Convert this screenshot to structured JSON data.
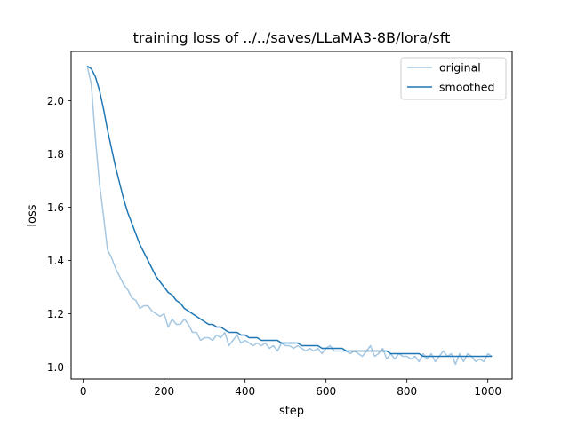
{
  "chart_data": {
    "type": "line",
    "title": "training loss of ../../saves/LLaMA3-8B/lora/sft",
    "xlabel": "step",
    "ylabel": "loss",
    "xlim": [
      -30,
      1060
    ],
    "ylim": [
      0.955,
      2.185
    ],
    "xticks": [
      0,
      200,
      400,
      600,
      800,
      1000
    ],
    "yticks": [
      1.0,
      1.2,
      1.4,
      1.6,
      1.8,
      2.0
    ],
    "xtick_labels": [
      "0",
      "200",
      "400",
      "600",
      "800",
      "1000"
    ],
    "ytick_labels": [
      "1.0",
      "1.2",
      "1.4",
      "1.6",
      "1.8",
      "2.0"
    ],
    "grid": false,
    "legend_position": "top-right",
    "series": [
      {
        "name": "original",
        "color": "#a6c8e2",
        "x": [
          10,
          20,
          30,
          40,
          50,
          60,
          70,
          80,
          90,
          100,
          110,
          120,
          130,
          140,
          150,
          160,
          170,
          180,
          190,
          200,
          210,
          220,
          230,
          240,
          250,
          260,
          270,
          280,
          290,
          300,
          310,
          320,
          330,
          340,
          350,
          360,
          370,
          380,
          390,
          400,
          410,
          420,
          430,
          440,
          450,
          460,
          470,
          480,
          490,
          500,
          510,
          520,
          530,
          540,
          550,
          560,
          570,
          580,
          590,
          600,
          610,
          620,
          630,
          640,
          650,
          660,
          670,
          680,
          690,
          700,
          710,
          720,
          730,
          740,
          750,
          760,
          770,
          780,
          790,
          800,
          810,
          820,
          830,
          840,
          850,
          860,
          870,
          880,
          890,
          900,
          910,
          920,
          930,
          940,
          950,
          960,
          970,
          980,
          990,
          1000,
          1010
        ],
        "y": [
          2.13,
          2.06,
          1.86,
          1.69,
          1.57,
          1.44,
          1.41,
          1.37,
          1.34,
          1.31,
          1.29,
          1.26,
          1.25,
          1.22,
          1.23,
          1.23,
          1.21,
          1.2,
          1.19,
          1.2,
          1.15,
          1.18,
          1.16,
          1.16,
          1.18,
          1.16,
          1.13,
          1.13,
          1.1,
          1.11,
          1.11,
          1.1,
          1.12,
          1.11,
          1.13,
          1.08,
          1.1,
          1.12,
          1.09,
          1.1,
          1.09,
          1.08,
          1.09,
          1.08,
          1.09,
          1.07,
          1.08,
          1.06,
          1.09,
          1.08,
          1.08,
          1.07,
          1.08,
          1.07,
          1.06,
          1.07,
          1.06,
          1.07,
          1.05,
          1.07,
          1.08,
          1.06,
          1.06,
          1.06,
          1.06,
          1.05,
          1.06,
          1.05,
          1.04,
          1.06,
          1.08,
          1.04,
          1.05,
          1.07,
          1.03,
          1.05,
          1.03,
          1.05,
          1.04,
          1.04,
          1.03,
          1.04,
          1.02,
          1.05,
          1.03,
          1.05,
          1.02,
          1.04,
          1.06,
          1.04,
          1.05,
          1.01,
          1.05,
          1.02,
          1.05,
          1.04,
          1.02,
          1.03,
          1.02,
          1.05,
          1.04
        ]
      },
      {
        "name": "smoothed",
        "color": "#1f77b4",
        "x": [
          10,
          20,
          30,
          40,
          50,
          60,
          70,
          80,
          90,
          100,
          110,
          120,
          130,
          140,
          150,
          160,
          170,
          180,
          190,
          200,
          210,
          220,
          230,
          240,
          250,
          260,
          270,
          280,
          290,
          300,
          310,
          320,
          330,
          340,
          350,
          360,
          370,
          380,
          390,
          400,
          410,
          420,
          430,
          440,
          450,
          460,
          470,
          480,
          490,
          500,
          510,
          520,
          530,
          540,
          550,
          560,
          570,
          580,
          590,
          600,
          610,
          620,
          630,
          640,
          650,
          660,
          670,
          680,
          690,
          700,
          710,
          720,
          730,
          740,
          750,
          760,
          770,
          780,
          790,
          800,
          810,
          820,
          830,
          840,
          850,
          860,
          870,
          880,
          890,
          900,
          910,
          920,
          930,
          940,
          950,
          960,
          970,
          980,
          990,
          1000,
          1010
        ],
        "y": [
          2.13,
          2.12,
          2.09,
          2.04,
          1.97,
          1.89,
          1.82,
          1.75,
          1.69,
          1.63,
          1.58,
          1.54,
          1.5,
          1.46,
          1.43,
          1.4,
          1.37,
          1.34,
          1.32,
          1.3,
          1.28,
          1.27,
          1.25,
          1.24,
          1.22,
          1.21,
          1.2,
          1.19,
          1.18,
          1.17,
          1.16,
          1.16,
          1.15,
          1.15,
          1.14,
          1.13,
          1.13,
          1.13,
          1.12,
          1.12,
          1.11,
          1.11,
          1.11,
          1.1,
          1.1,
          1.1,
          1.1,
          1.1,
          1.09,
          1.09,
          1.09,
          1.09,
          1.09,
          1.08,
          1.08,
          1.08,
          1.08,
          1.08,
          1.07,
          1.07,
          1.07,
          1.07,
          1.07,
          1.07,
          1.06,
          1.06,
          1.06,
          1.06,
          1.06,
          1.06,
          1.06,
          1.06,
          1.06,
          1.06,
          1.06,
          1.05,
          1.05,
          1.05,
          1.05,
          1.05,
          1.05,
          1.05,
          1.05,
          1.04,
          1.04,
          1.04,
          1.04,
          1.04,
          1.04,
          1.04,
          1.04,
          1.04,
          1.04,
          1.04,
          1.04,
          1.04,
          1.04,
          1.04,
          1.04,
          1.04,
          1.04
        ]
      }
    ]
  }
}
